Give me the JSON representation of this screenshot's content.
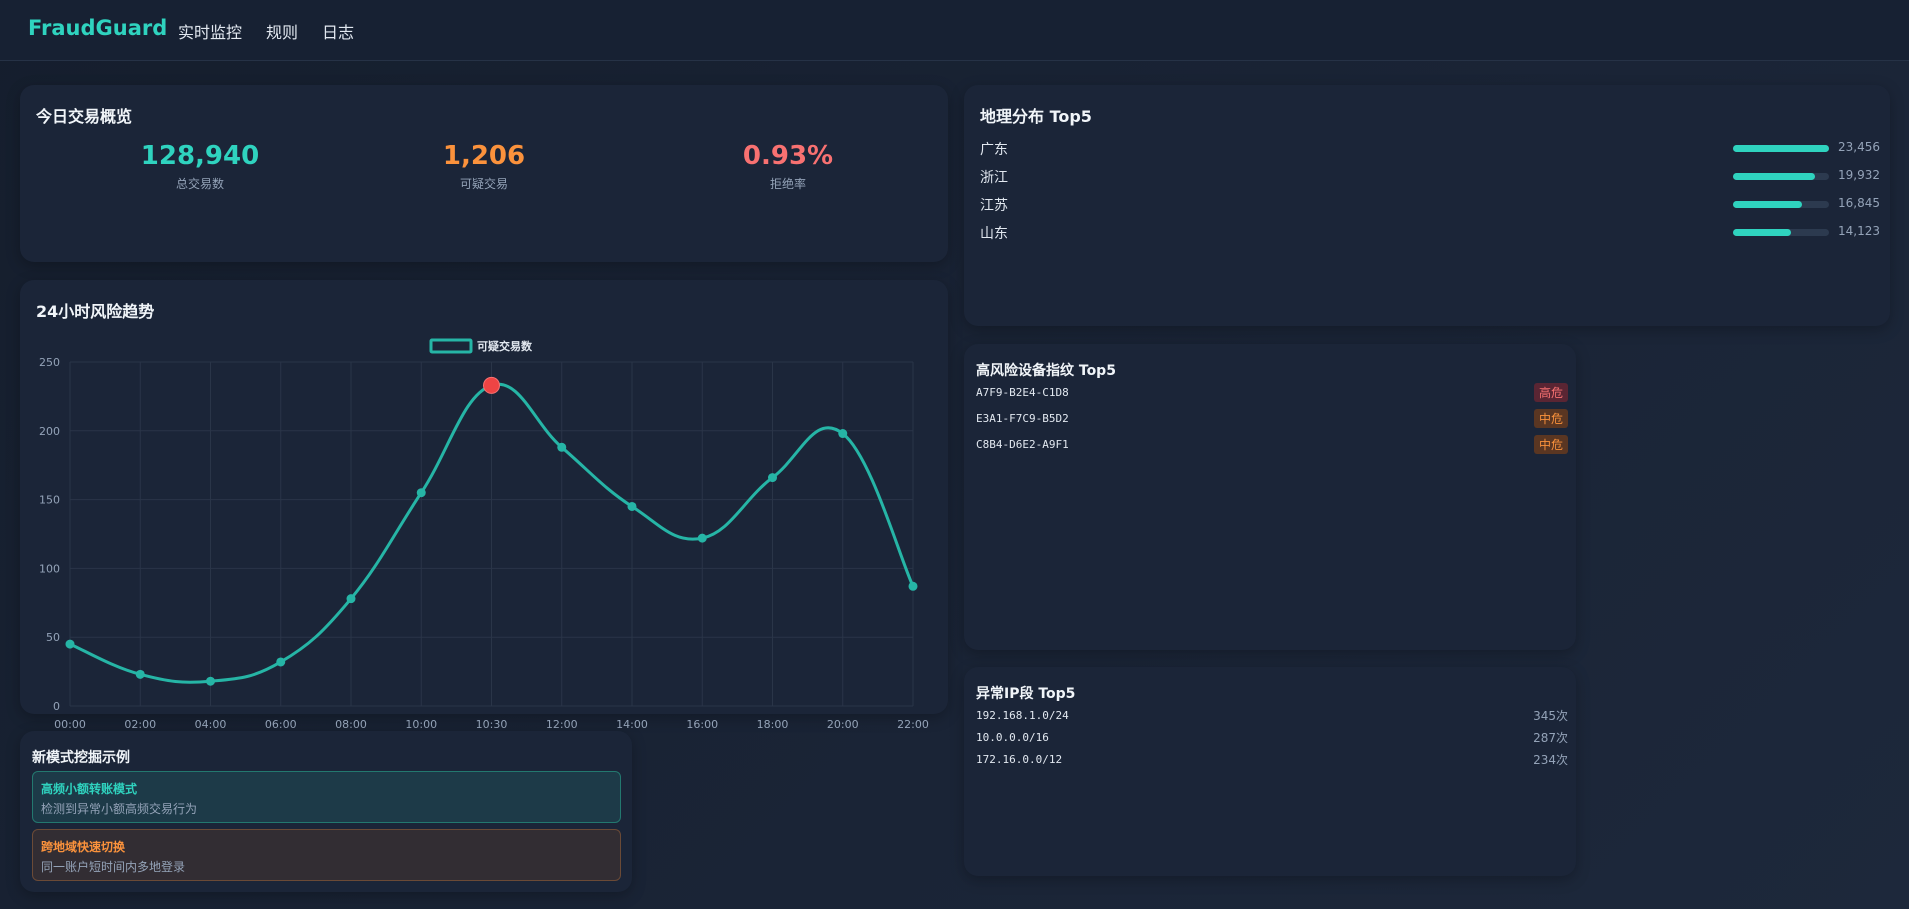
{
  "app": {
    "brand": "FraudGuard",
    "nav": [
      "实时监控",
      "规则",
      "日志"
    ]
  },
  "overview": {
    "title": "今日交易概览",
    "stats": [
      {
        "value": "128,940",
        "label": "总交易数",
        "color": "#2fd3bf"
      },
      {
        "value": "1,206",
        "label": "可疑交易",
        "color": "#fb923c"
      },
      {
        "value": "0.93%",
        "label": "拒绝率",
        "color": "#f87171"
      }
    ]
  },
  "geo": {
    "title": "地理分布 Top5",
    "items": [
      {
        "name": "广东",
        "value": "23,456",
        "ratio": 1.0
      },
      {
        "name": "浙江",
        "value": "19,932",
        "ratio": 0.85
      },
      {
        "name": "江苏",
        "value": "16,845",
        "ratio": 0.72
      },
      {
        "name": "山东",
        "value": "14,123",
        "ratio": 0.6
      }
    ]
  },
  "devices": {
    "title": "高风险设备指纹 Top5",
    "items": [
      {
        "id": "A7F9-B2E4-C1D8",
        "level": "高危",
        "type": "high"
      },
      {
        "id": "E3A1-F7C9-B5D2",
        "level": "中危",
        "type": "mid"
      },
      {
        "id": "C8B4-D6E2-A9F1",
        "level": "中危",
        "type": "mid"
      }
    ]
  },
  "ips": {
    "title": "异常IP段 Top5",
    "items": [
      {
        "ip": "192.168.1.0/24",
        "count": "345次"
      },
      {
        "ip": "10.0.0.0/16",
        "count": "287次"
      },
      {
        "ip": "172.16.0.0/12",
        "count": "234次"
      }
    ]
  },
  "patterns": {
    "title": "新模式挖掘示例",
    "items": [
      {
        "title": "高频小额转账模式",
        "desc": "检测到异常小额高频交易行为",
        "style": "teal"
      },
      {
        "title": "跨地域快速切换",
        "desc": "同一账户短时间内多地登录",
        "style": "orange"
      }
    ]
  },
  "trend": {
    "title": "24小时风险趋势",
    "chart_data": {
      "type": "line",
      "categories": [
        "00:00",
        "02:00",
        "04:00",
        "06:00",
        "08:00",
        "10:00",
        "10:30",
        "12:00",
        "14:00",
        "16:00",
        "18:00",
        "20:00",
        "22:00"
      ],
      "series": [
        {
          "name": "可疑交易数",
          "values": [
            45,
            23,
            18,
            32,
            78,
            155,
            233,
            188,
            145,
            122,
            166,
            198,
            87
          ],
          "color": "#26b5a6"
        }
      ],
      "highlight_index": 6,
      "highlight_color": "#ef4444",
      "ylim": [
        0,
        250
      ],
      "yticks": [
        0,
        50,
        100,
        150,
        200,
        250
      ],
      "grid": true,
      "legend": "top-center"
    }
  }
}
